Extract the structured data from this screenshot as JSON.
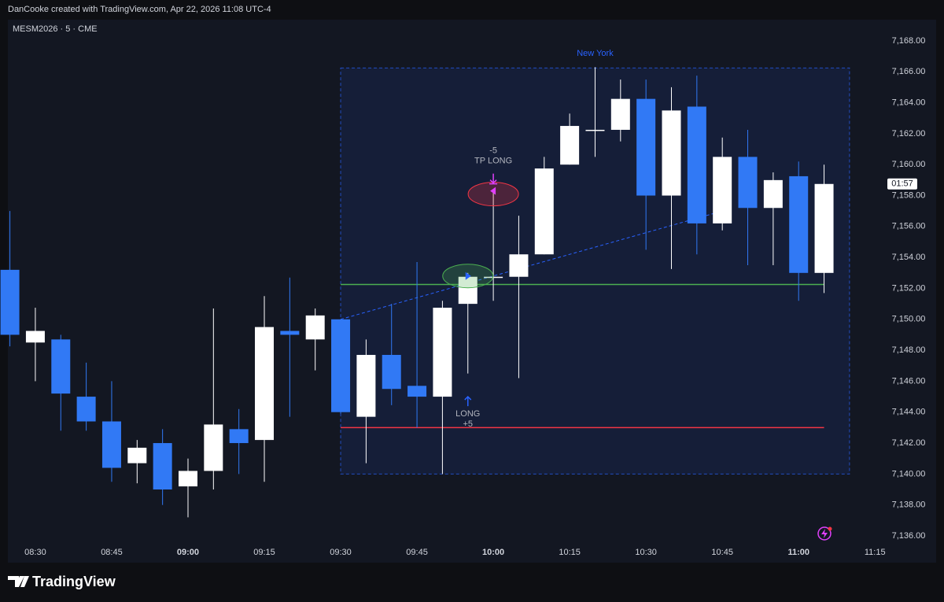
{
  "header": {
    "credit": "DanCooke created with TradingView.com, Apr 22, 2026 11:08 UTC-4",
    "symbol": "MESM2026 · 5 · CME"
  },
  "footer": {
    "brand": "TradingView"
  },
  "chart_data": {
    "type": "candlestick",
    "x": [
      505,
      510,
      515,
      520,
      525,
      530,
      535,
      540,
      545,
      550,
      555,
      560,
      565,
      570,
      575,
      580,
      585,
      590,
      595,
      600,
      605,
      610,
      615,
      620,
      625,
      630,
      635,
      640,
      645,
      650,
      655,
      660,
      665
    ],
    "open": [
      7153.2,
      7148.5,
      7148.7,
      7145.0,
      7143.4,
      7140.7,
      7142.0,
      7139.2,
      7140.2,
      7142.9,
      7142.2,
      7149.25,
      7148.7,
      7150.0,
      7143.7,
      7147.7,
      7145.7,
      7145.0,
      7151.0,
      7152.75,
      7152.75,
      7154.2,
      7160.0,
      7162.25,
      7162.25,
      7164.25,
      7158.0,
      7163.75,
      7156.2,
      7160.5,
      7157.2,
      7159.25,
      7153.0
    ],
    "high": [
      7157.0,
      7150.75,
      7149.0,
      7147.2,
      7146.0,
      7142.2,
      7142.9,
      7141.0,
      7150.7,
      7144.2,
      7151.5,
      7152.7,
      7150.7,
      7150.0,
      7148.7,
      7151.0,
      7153.7,
      7151.2,
      7153.0,
      7158.3,
      7156.7,
      7160.5,
      7163.3,
      7166.3,
      7165.5,
      7165.5,
      7165.0,
      7165.75,
      7161.75,
      7162.25,
      7159.5,
      7160.2,
      7160.0
    ],
    "low": [
      7148.25,
      7146.0,
      7142.8,
      7142.8,
      7139.5,
      7139.4,
      7138.0,
      7137.2,
      7139.0,
      7140.0,
      7139.5,
      7143.7,
      7146.7,
      7143.9,
      7140.7,
      7144.45,
      7143.0,
      7140.0,
      7146.5,
      7151.2,
      7146.2,
      7154.2,
      7160.0,
      7160.5,
      7161.5,
      7154.5,
      7153.25,
      7154.2,
      7155.75,
      7153.5,
      7153.5,
      7151.2,
      7151.7
    ],
    "close": [
      7149.0,
      7149.25,
      7145.2,
      7143.4,
      7140.4,
      7141.7,
      7139.0,
      7140.2,
      7143.2,
      7142.0,
      7149.5,
      7149.0,
      7150.25,
      7144.0,
      7147.7,
      7145.5,
      7145.0,
      7150.75,
      7152.75,
      7152.75,
      7154.2,
      7159.75,
      7162.5,
      7162.25,
      7164.25,
      7158.0,
      7163.5,
      7156.2,
      7160.5,
      7157.2,
      7159.0,
      7153.0,
      7158.75
    ],
    "up_color": "#ffffff",
    "down_color": "#3179f5",
    "xlim": [
      504.6,
      676.2
    ],
    "xticks": [
      {
        "value": 510,
        "label": "08:30"
      },
      {
        "value": 525,
        "label": "08:45"
      },
      {
        "value": 540,
        "label": "09:00"
      },
      {
        "value": 555,
        "label": "09:15"
      },
      {
        "value": 570,
        "label": "09:30"
      },
      {
        "value": 585,
        "label": "09:45"
      },
      {
        "value": 600,
        "label": "10:00"
      },
      {
        "value": 615,
        "label": "10:15"
      },
      {
        "value": 630,
        "label": "10:30"
      },
      {
        "value": 645,
        "label": "10:45"
      },
      {
        "value": 660,
        "label": "11:00"
      },
      {
        "value": 675,
        "label": "11:15"
      }
    ],
    "ylim": [
      7134.27,
      7169.37
    ],
    "yticks": [
      {
        "value": 7136,
        "label": "7,136.00"
      },
      {
        "value": 7138,
        "label": "7,138.00"
      },
      {
        "value": 7140,
        "label": "7,140.00"
      },
      {
        "value": 7142,
        "label": "7,142.00"
      },
      {
        "value": 7144,
        "label": "7,144.00"
      },
      {
        "value": 7146,
        "label": "7,146.00"
      },
      {
        "value": 7148,
        "label": "7,148.00"
      },
      {
        "value": 7150,
        "label": "7,150.00"
      },
      {
        "value": 7152,
        "label": "7,152.00"
      },
      {
        "value": 7154,
        "label": "7,154.00"
      },
      {
        "value": 7156,
        "label": "7,156.00"
      },
      {
        "value": 7158,
        "label": "7,158.00"
      },
      {
        "value": 7160,
        "label": "7,160.00"
      },
      {
        "value": 7162,
        "label": "7,162.00"
      },
      {
        "value": 7164,
        "label": "7,164.00"
      },
      {
        "value": 7166,
        "label": "7,166.00"
      },
      {
        "value": 7168,
        "label": "7,168.00"
      }
    ],
    "grid": false,
    "session": {
      "label": "New York",
      "time": [
        570,
        670
      ],
      "price": [
        7140,
        7166.25
      ]
    },
    "levels": [
      {
        "price": 7152.25,
        "time": [
          570,
          665
        ],
        "color": "#4caf50"
      },
      {
        "price": 7143,
        "time": [
          570,
          665
        ],
        "color": "#f23645"
      }
    ],
    "trend": {
      "time": [
        570,
        645
      ],
      "price": [
        7150,
        7157
      ]
    },
    "entry": {
      "label": "LONG",
      "pnl": "+5",
      "time": 595,
      "price": 7152.8
    },
    "exit": {
      "label": "TP LONG",
      "pnl": "-5",
      "time": 600,
      "price": 7158.3
    },
    "countdown": "01:57"
  }
}
